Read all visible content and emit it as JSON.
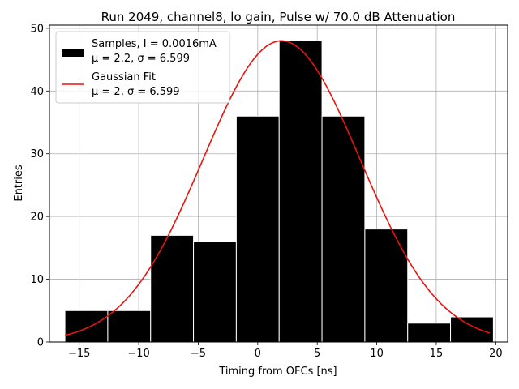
{
  "chart_data": {
    "type": "bar",
    "title": "Run 2049, channel8, lo gain, Pulse w/ 70.0 dB Attenuation",
    "xlabel": "Timing from OFCs [ns]",
    "ylabel": "Entries",
    "xlim": [
      -17.5,
      21.0
    ],
    "ylim": [
      0,
      50.5
    ],
    "xticks": [
      -15,
      -10,
      -5,
      0,
      5,
      10,
      15,
      20
    ],
    "xtick_labels": [
      "−15",
      "−10",
      "−5",
      "0",
      "5",
      "10",
      "15",
      "20"
    ],
    "yticks": [
      0,
      10,
      20,
      30,
      40,
      50
    ],
    "ytick_labels": [
      "0",
      "10",
      "20",
      "30",
      "40",
      "50"
    ],
    "grid": true,
    "bin_edges": [
      -16.2,
      -12.6,
      -9.0,
      -5.4,
      -1.8,
      1.8,
      5.4,
      9.0,
      12.6,
      16.2,
      19.8
    ],
    "values": [
      5,
      5,
      17,
      16,
      36,
      48,
      36,
      18,
      3,
      4
    ],
    "bar_color": "#000000",
    "bar_edge_color": "#ffffff",
    "fit": {
      "amplitude": 48,
      "mu": 2.0,
      "sigma": 6.599,
      "x_range": [
        -16.2,
        19.5
      ],
      "color": "#e8140f"
    },
    "legend": {
      "location": "upper-left",
      "samples_line1": "Samples, I = 0.0016mA",
      "samples_line2": "μ = 2.2, σ = 6.599",
      "fit_line1": "Gaussian Fit",
      "fit_line2": "μ = 2, σ = 6.599"
    }
  }
}
